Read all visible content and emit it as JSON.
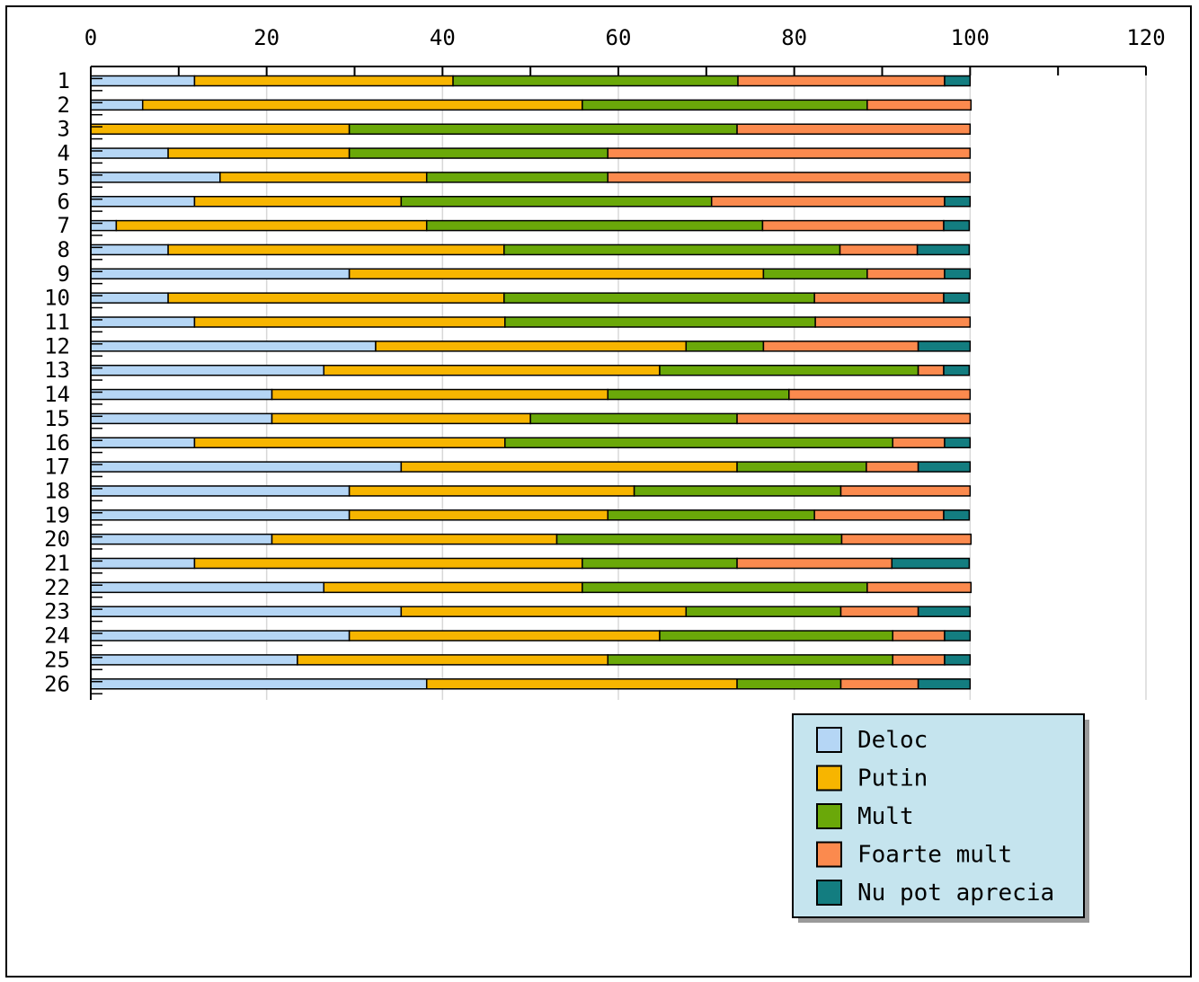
{
  "chart_data": {
    "type": "bar",
    "orientation": "horizontal",
    "stacked": true,
    "title": "",
    "xlabel": "",
    "ylabel": "",
    "xlim": [
      0,
      120
    ],
    "x_ticks": [
      "0",
      "20",
      "40",
      "60",
      "80",
      "100",
      "120"
    ],
    "grid": true,
    "legend_position": "bottom-right",
    "categories": [
      "1",
      "2",
      "3",
      "4",
      "5",
      "6",
      "7",
      "8",
      "9",
      "10",
      "11",
      "12",
      "13",
      "14",
      "15",
      "16",
      "17",
      "18",
      "19",
      "20",
      "21",
      "22",
      "23",
      "24",
      "25",
      "26"
    ],
    "series": [
      {
        "name": "Deloc",
        "color": "#b5d6f5",
        "values": [
          11.8,
          5.9,
          0,
          8.8,
          14.7,
          11.8,
          2.9,
          8.8,
          29.4,
          8.8,
          11.8,
          32.4,
          26.5,
          20.6,
          20.6,
          11.8,
          35.3,
          29.4,
          29.4,
          20.6,
          11.8,
          26.5,
          35.3,
          29.4,
          23.5,
          38.2
        ]
      },
      {
        "name": "Putin",
        "color": "#f7b500",
        "values": [
          29.4,
          50.0,
          29.4,
          20.6,
          23.5,
          23.5,
          35.3,
          38.2,
          47.1,
          38.2,
          35.3,
          35.3,
          38.2,
          38.2,
          29.4,
          35.3,
          38.2,
          32.4,
          29.4,
          32.4,
          44.1,
          29.4,
          32.4,
          35.3,
          35.3,
          35.3
        ]
      },
      {
        "name": "Mult",
        "color": "#6aa809",
        "values": [
          32.4,
          32.4,
          44.1,
          29.4,
          20.6,
          35.3,
          38.2,
          38.2,
          11.8,
          35.3,
          35.3,
          8.8,
          29.4,
          20.6,
          23.5,
          44.1,
          14.7,
          23.5,
          23.5,
          32.4,
          17.6,
          32.4,
          17.6,
          26.5,
          32.4,
          11.8
        ]
      },
      {
        "name": "Foarte mult",
        "color": "#fb8a4e",
        "values": [
          23.5,
          11.8,
          26.5,
          41.2,
          41.2,
          26.5,
          20.6,
          8.8,
          8.8,
          14.7,
          17.6,
          17.6,
          2.9,
          20.6,
          26.5,
          5.9,
          5.9,
          14.7,
          14.7,
          14.7,
          17.6,
          11.8,
          8.8,
          5.9,
          5.9,
          8.8
        ]
      },
      {
        "name": "Nu pot aprecia",
        "color": "#137d80",
        "values": [
          2.9,
          0,
          0,
          0,
          0,
          2.9,
          2.9,
          5.9,
          2.9,
          2.9,
          0,
          5.9,
          2.9,
          0,
          0,
          2.9,
          5.9,
          0,
          2.9,
          0,
          8.8,
          0,
          5.9,
          2.9,
          2.9,
          5.9
        ]
      }
    ]
  },
  "legend": {
    "background": "#c5e4ee"
  }
}
